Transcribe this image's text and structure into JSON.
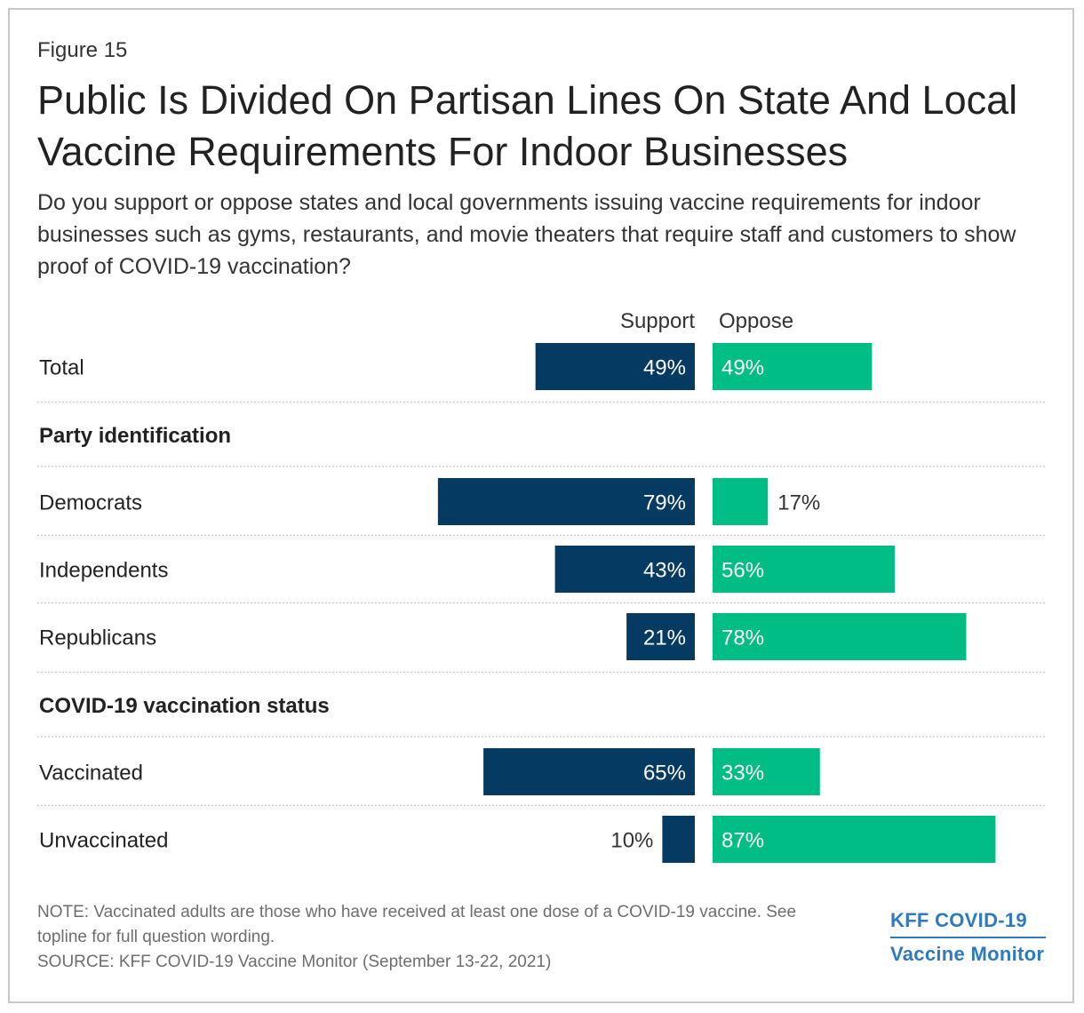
{
  "figure_label": "Figure 15",
  "title": "Public Is Divided On Partisan Lines On State And Local Vaccine Requirements For Indoor Businesses",
  "subtitle": "Do you support or oppose states and local governments issuing vaccine requirements for indoor businesses such as gyms, restaurants, and movie theaters that require staff and customers to show proof of COVID-19 vaccination?",
  "colors": {
    "support": "#053a62",
    "oppose": "#00bd86",
    "divider": "#c8c8c8"
  },
  "chart_data": {
    "type": "bar",
    "orientation": "horizontal-diverging",
    "legend": [
      "Support",
      "Oppose"
    ],
    "unit": "%",
    "rows": [
      {
        "kind": "data",
        "label": "Total",
        "support": 49,
        "oppose": 49,
        "support_label": "49%",
        "oppose_label": "49%"
      },
      {
        "kind": "header",
        "label": "Party identification"
      },
      {
        "kind": "data",
        "label": "Democrats",
        "support": 79,
        "oppose": 17,
        "support_label": "79%",
        "oppose_label": "17%"
      },
      {
        "kind": "data",
        "label": "Independents",
        "support": 43,
        "oppose": 56,
        "support_label": "43%",
        "oppose_label": "56%"
      },
      {
        "kind": "data",
        "label": "Republicans",
        "support": 21,
        "oppose": 78,
        "support_label": "21%",
        "oppose_label": "78%"
      },
      {
        "kind": "header",
        "label": "COVID-19 vaccination status"
      },
      {
        "kind": "data",
        "label": "Vaccinated",
        "support": 65,
        "oppose": 33,
        "support_label": "65%",
        "oppose_label": "33%"
      },
      {
        "kind": "data",
        "label": "Unvaccinated",
        "support": 10,
        "oppose": 87,
        "support_label": "10%",
        "oppose_label": "87%"
      }
    ]
  },
  "note": "NOTE: Vaccinated adults are those who have received at least one dose of a COVID-19 vaccine. See topline for full question wording.",
  "source": "SOURCE: KFF COVID-19 Vaccine Monitor (September 13-22, 2021)",
  "brand": {
    "line1": "KFF COVID-19",
    "line2": "Vaccine Monitor"
  }
}
